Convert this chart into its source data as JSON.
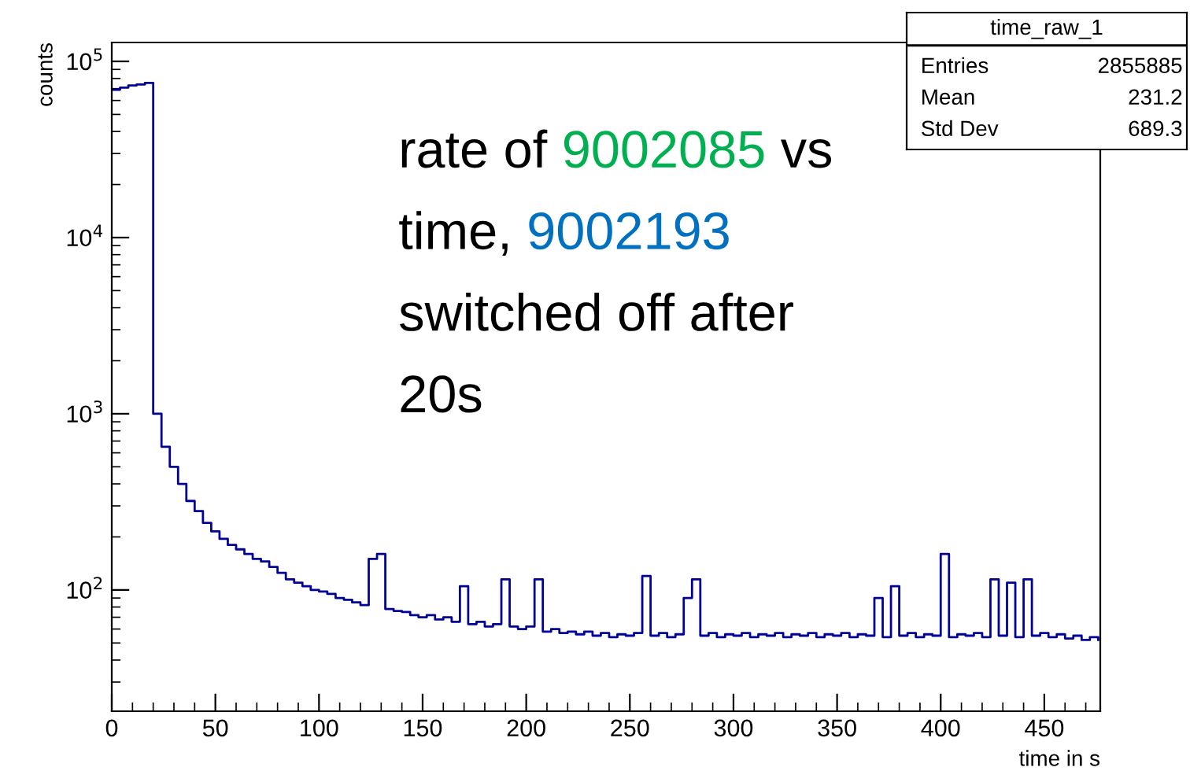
{
  "chart_data": {
    "type": "step",
    "xlabel": "time in s",
    "ylabel": "counts",
    "x": [
      0,
      4,
      8,
      12,
      16,
      20,
      24,
      28,
      32,
      36,
      40,
      44,
      48,
      52,
      56,
      60,
      64,
      68,
      72,
      76,
      80,
      84,
      88,
      92,
      96,
      100,
      104,
      108,
      112,
      116,
      120,
      124,
      128,
      132,
      136,
      140,
      144,
      148,
      152,
      156,
      160,
      164,
      168,
      172,
      176,
      180,
      184,
      188,
      192,
      196,
      200,
      204,
      208,
      212,
      216,
      220,
      224,
      228,
      232,
      236,
      240,
      244,
      248,
      252,
      256,
      260,
      264,
      268,
      272,
      276,
      280,
      284,
      288,
      292,
      296,
      300,
      304,
      308,
      312,
      316,
      320,
      324,
      328,
      332,
      336,
      340,
      344,
      348,
      352,
      356,
      360,
      364,
      368,
      372,
      376,
      380,
      384,
      388,
      392,
      396,
      400,
      404,
      408,
      412,
      416,
      420,
      424,
      428,
      432,
      436,
      440,
      444,
      448,
      452,
      456,
      460,
      464,
      468,
      472,
      476
    ],
    "series": [
      {
        "color": "#000099",
        "values": [
          69000,
          71000,
          73000,
          74000,
          75500,
          1000,
          650,
          500,
          400,
          320,
          280,
          240,
          215,
          195,
          180,
          170,
          160,
          150,
          145,
          135,
          125,
          115,
          110,
          105,
          100,
          98,
          95,
          90,
          88,
          85,
          82,
          150,
          160,
          78,
          76,
          75,
          72,
          70,
          72,
          68,
          70,
          66,
          105,
          64,
          66,
          62,
          64,
          115,
          62,
          60,
          62,
          115,
          58,
          60,
          57,
          58,
          56,
          58,
          55,
          57,
          54,
          56,
          55,
          57,
          120,
          55,
          57,
          54,
          56,
          90,
          115,
          55,
          57,
          54,
          56,
          55,
          57,
          54,
          56,
          55,
          57,
          54,
          56,
          55,
          57,
          54,
          56,
          55,
          57,
          54,
          56,
          55,
          90,
          54,
          105,
          55,
          57,
          54,
          56,
          55,
          160,
          54,
          56,
          55,
          57,
          54,
          115,
          55,
          110,
          54,
          115,
          55,
          57,
          54,
          56,
          53,
          55,
          52,
          54,
          52
        ]
      }
    ],
    "log": "y",
    "xlim": [
      0,
      477
    ],
    "ylim": [
      20.5,
      128000
    ],
    "xticks": [
      0,
      50,
      100,
      150,
      200,
      250,
      300,
      350,
      400,
      450
    ],
    "yticks": [
      {
        "value": 100,
        "label": "10$^{2}$"
      },
      {
        "value": 1000,
        "label": "10$^{3}$"
      },
      {
        "value": 10000,
        "label": "10$^{4}$"
      },
      {
        "value": 100000,
        "label": "10$^{5}$"
      }
    ],
    "grid": false,
    "legend": false,
    "annotations": [
      "rate of 9002085 vs",
      "time, 9002193",
      "switched off after",
      "20s",
      "time_raw_1",
      "Entries 2855885",
      "Mean 231.2",
      "Std Dev 689.3"
    ]
  }
}
